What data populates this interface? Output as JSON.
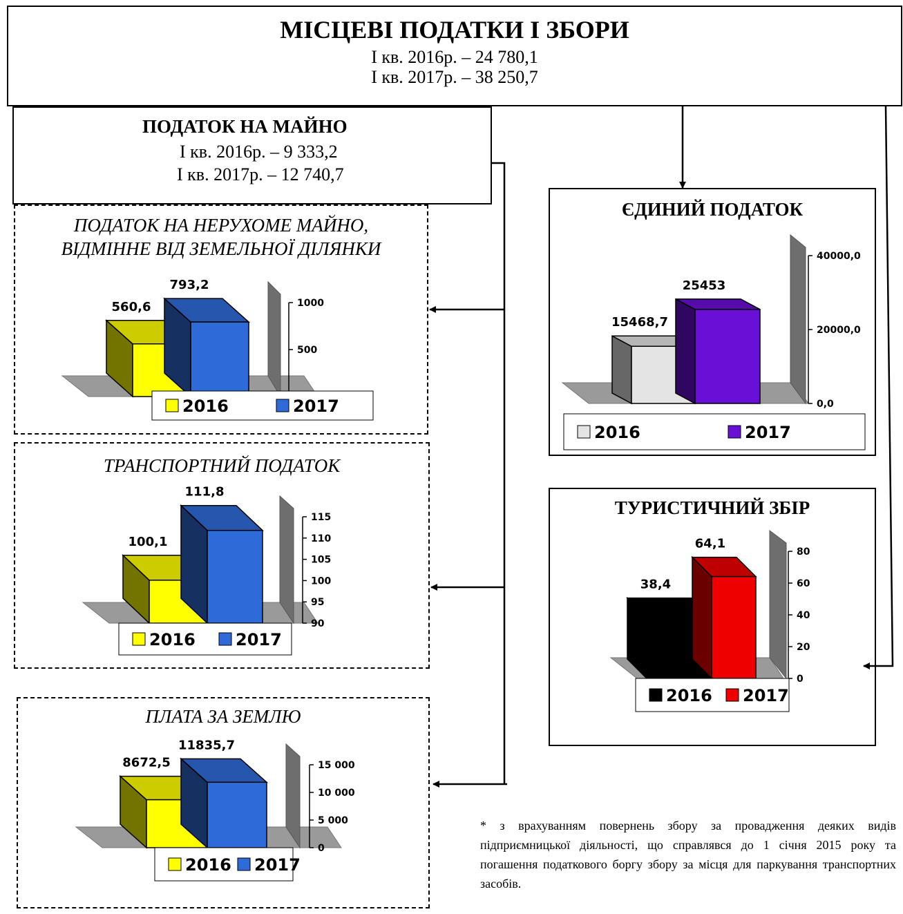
{
  "header": {
    "title": "МІСЦЕВІ ПОДАТКИ І ЗБОРИ",
    "line1": "І кв. 2016р. – 24 780,1",
    "line2": "І кв. 2017р. – 38 250,7"
  },
  "property": {
    "title": "ПОДАТОК НА МАЙНО",
    "line1": "І кв. 2016р. – 9 333,2",
    "line2": "І кв. 2017р. – 12 740,7"
  },
  "realestate_title_1": "ПОДАТОК НА НЕРУХОМЕ МАЙНО,",
  "realestate_title_2": "ВІДМІННЕ ВІД ЗЕМЕЛЬНОЇ ДІЛЯНКИ",
  "transport_title": "ТРАНСПОРТНИЙ ПОДАТОК",
  "land_title": "ПЛАТА ЗА ЗЕМЛЮ",
  "single_title": "ЄДИНИЙ ПОДАТОК",
  "tourist_title": "ТУРИСТИЧНИЙ ЗБІР",
  "footnote": "* з врахуванням повернень збору за провадження деяких видів підприємницької діяльності, що справлявся до 1 січня 2015 року та погашення податкового боргу збору за місця для паркування транспортних засобів.",
  "chart_data": [
    {
      "id": "realestate",
      "type": "bar",
      "categories": [
        "2016",
        "2017"
      ],
      "values": [
        560.6,
        793.2
      ],
      "value_labels": [
        "560,6",
        "793,2"
      ],
      "ylim": [
        0,
        1000
      ],
      "ticks": [
        500,
        1000
      ],
      "tick_labels": [
        "500",
        "1000"
      ],
      "legend": [
        "2016",
        "2017"
      ],
      "colors": [
        "#ffff00",
        "#2f6bd8"
      ]
    },
    {
      "id": "transport",
      "type": "bar",
      "categories": [
        "2016",
        "2017"
      ],
      "values": [
        100.1,
        111.8
      ],
      "value_labels": [
        "100,1",
        "111,8"
      ],
      "ylim": [
        90,
        115
      ],
      "ticks": [
        90,
        95,
        100,
        105,
        110,
        115
      ],
      "tick_labels": [
        "90",
        "95",
        "100",
        "105",
        "110",
        "115"
      ],
      "legend": [
        "2016",
        "2017"
      ],
      "colors": [
        "#ffff00",
        "#2f6bd8"
      ]
    },
    {
      "id": "land",
      "type": "bar",
      "categories": [
        "2016",
        "2017"
      ],
      "values": [
        8672.5,
        11835.7
      ],
      "value_labels": [
        "8672,5",
        "11835,7"
      ],
      "ylim": [
        0,
        15000
      ],
      "ticks": [
        0,
        5000,
        10000,
        15000
      ],
      "tick_labels": [
        "0",
        "5 000",
        "10 000",
        "15 000"
      ],
      "legend": [
        "2016",
        "2017"
      ],
      "colors": [
        "#ffff00",
        "#2f6bd8"
      ]
    },
    {
      "id": "single",
      "type": "bar",
      "categories": [
        "2016",
        "2017"
      ],
      "values": [
        15468.7,
        25453
      ],
      "value_labels": [
        "15468,7",
        "25453"
      ],
      "ylim": [
        0,
        40000
      ],
      "ticks": [
        0,
        20000,
        40000
      ],
      "tick_labels": [
        "0,0",
        "20000,0",
        "40000,0"
      ],
      "legend": [
        "2016",
        "2017"
      ],
      "colors": [
        "#e4e4e4",
        "#6a0fd6"
      ]
    },
    {
      "id": "tourist",
      "type": "bar",
      "categories": [
        "2016",
        "2017"
      ],
      "values": [
        38.4,
        64.1
      ],
      "value_labels": [
        "38,4",
        "64,1"
      ],
      "ylim": [
        0,
        80
      ],
      "ticks": [
        0,
        20,
        40,
        60,
        80
      ],
      "tick_labels": [
        "0",
        "20",
        "40",
        "60",
        "80"
      ],
      "legend": [
        "2016",
        "2017"
      ],
      "colors": [
        "#000000",
        "#ee0000"
      ]
    }
  ]
}
